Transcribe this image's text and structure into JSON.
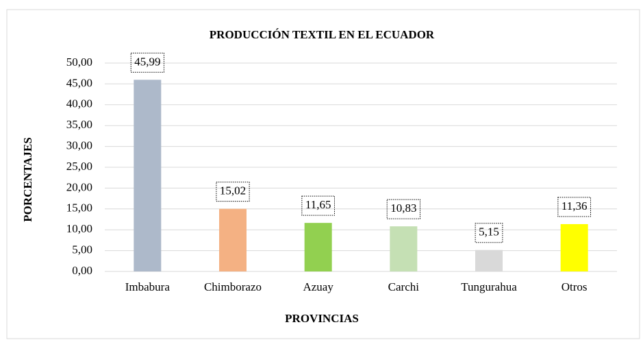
{
  "chart_data": {
    "type": "bar",
    "title": "PRODUCCIÓN TEXTIL EN EL ECUADOR",
    "x_label": "PROVINCIAS",
    "y_label": "PORCENTAJES",
    "categories": [
      "Imbabura",
      "Chimborazo",
      "Azuay",
      "Carchi",
      "Tungurahua",
      "Otros"
    ],
    "values": [
      45.99,
      15.02,
      11.65,
      10.83,
      5.15,
      11.36
    ],
    "value_labels": [
      "45,99",
      "15,02",
      "11,65",
      "10,83",
      "5,15",
      "11,36"
    ],
    "colors": [
      "#adb9ca",
      "#f4b183",
      "#92d050",
      "#c5e0b4",
      "#d9d9d9",
      "#ffff00"
    ],
    "ylim": [
      0,
      50
    ],
    "yticks": [
      {
        "value": 0,
        "label": "0,00"
      },
      {
        "value": 5,
        "label": "5,00"
      },
      {
        "value": 10,
        "label": "10,00"
      },
      {
        "value": 15,
        "label": "15,00"
      },
      {
        "value": 20,
        "label": "20,00"
      },
      {
        "value": 25,
        "label": "25,00"
      },
      {
        "value": 30,
        "label": "30,00"
      },
      {
        "value": 35,
        "label": "35,00"
      },
      {
        "value": 40,
        "label": "40,00"
      },
      {
        "value": 45,
        "label": "45,00"
      },
      {
        "value": 50,
        "label": "50,00"
      }
    ],
    "grid": true
  }
}
